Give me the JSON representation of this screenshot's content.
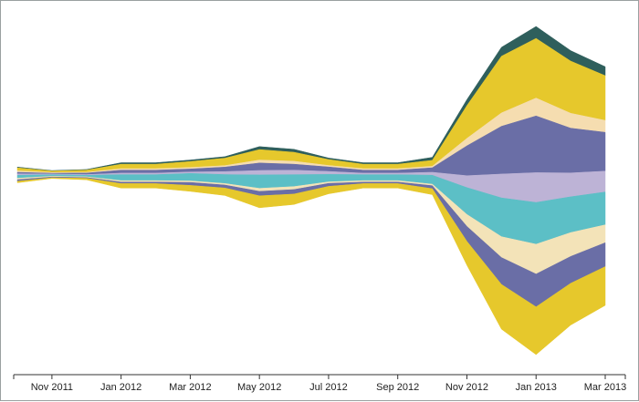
{
  "chart_data": {
    "type": "area",
    "layout": "streamgraph",
    "title": "",
    "xlabel": "",
    "ylabel": "",
    "grid": false,
    "legend": "none",
    "x_axis": {
      "ticks": [
        "Nov 2011",
        "Jan 2012",
        "Mar 2012",
        "May 2012",
        "Jul 2012",
        "Sep 2012",
        "Nov 2012",
        "Jan 2013",
        "Mar 2013"
      ]
    },
    "x": [
      "2011-10",
      "2011-11",
      "2011-12",
      "2012-01",
      "2012-02",
      "2012-03",
      "2012-04",
      "2012-05",
      "2012-06",
      "2012-07",
      "2012-08",
      "2012-09",
      "2012-10",
      "2012-11",
      "2012-12",
      "2013-01",
      "2013-02",
      "2013-03"
    ],
    "series": [
      {
        "color": "#2f5f5c",
        "values": [
          0.5,
          0.3,
          0.4,
          1,
          1,
          1,
          1,
          2,
          2,
          1,
          1,
          1,
          2,
          4,
          6,
          8,
          7,
          6
        ]
      },
      {
        "color": "#e6c82c",
        "values": [
          2,
          1,
          1.5,
          3,
          3,
          4,
          5,
          7,
          6,
          4,
          3,
          3,
          4,
          22,
          38,
          40,
          35,
          30
        ]
      },
      {
        "color": "#f5ddb0",
        "values": [
          1,
          0.5,
          0.5,
          1,
          1,
          1,
          1,
          2,
          2,
          1,
          1,
          1,
          1,
          5,
          9,
          12,
          10,
          8
        ]
      },
      {
        "color": "#6a6ea6",
        "values": [
          1,
          0.5,
          1,
          2,
          2,
          2,
          3,
          5,
          4,
          3,
          2,
          2,
          3,
          20,
          32,
          38,
          30,
          26
        ]
      },
      {
        "color": "#bdb3d6",
        "values": [
          1,
          0.5,
          0.5,
          1,
          1,
          1,
          2,
          3,
          3,
          2,
          1,
          1,
          2,
          8,
          16,
          20,
          16,
          14
        ]
      },
      {
        "color": "#5cbfc6",
        "values": [
          2,
          1,
          1,
          4,
          4,
          5,
          6,
          9,
          8,
          5,
          4,
          4,
          6,
          18,
          26,
          28,
          24,
          22
        ]
      },
      {
        "color": "#f3e3b8",
        "values": [
          1,
          0.5,
          0.5,
          1,
          1,
          1,
          1,
          2,
          2,
          1,
          1,
          1,
          1,
          8,
          14,
          20,
          16,
          12
        ]
      },
      {
        "color": "#6a6ea6",
        "values": [
          1,
          0.5,
          0.5,
          1,
          1,
          2,
          2,
          3,
          3,
          2,
          1,
          1,
          2,
          10,
          18,
          22,
          18,
          16
        ]
      },
      {
        "color": "#e6c82c",
        "values": [
          1,
          0.5,
          1,
          3,
          3,
          4,
          5,
          8,
          7,
          5,
          3,
          3,
          4,
          16,
          30,
          32,
          28,
          26
        ]
      }
    ]
  }
}
